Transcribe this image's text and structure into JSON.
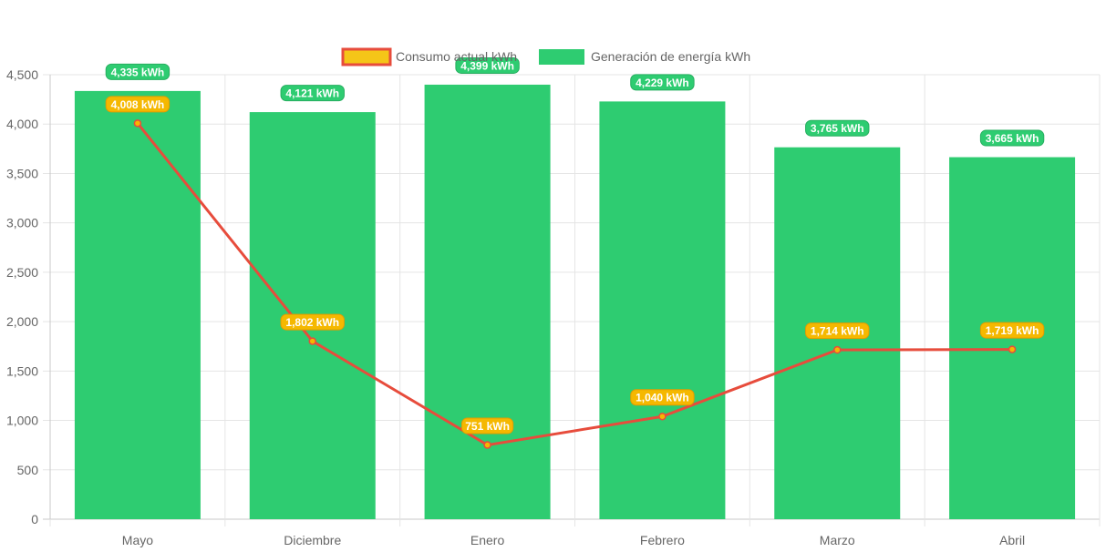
{
  "chart_data": {
    "type": "bar",
    "categories": [
      "Mayo",
      "Diciembre",
      "Enero",
      "Febrero",
      "Marzo",
      "Abril"
    ],
    "ylim": [
      0,
      4500
    ],
    "yticks": [
      0,
      500,
      1000,
      1500,
      2000,
      2500,
      3000,
      3500,
      4000,
      4500
    ],
    "ytick_labels": [
      "0",
      "500",
      "1,000",
      "1,500",
      "2,000",
      "2,500",
      "3,000",
      "3,500",
      "4,000",
      "4,500"
    ],
    "grid": true,
    "legend_position": "top-center",
    "series": [
      {
        "name": "Consumo actual kWh",
        "type": "line",
        "values": [
          4008,
          1802,
          751,
          1040,
          1714,
          1719
        ],
        "labels": [
          "4,008 kWh",
          "1,802 kWh",
          "751 kWh",
          "1,040 kWh",
          "1,714 kWh",
          "1,719 kWh"
        ],
        "color": "#e74c3c",
        "label_color": "#f5b800"
      },
      {
        "name": "Generación de energía kWh",
        "type": "bar",
        "values": [
          4335,
          4121,
          4399,
          4229,
          3765,
          3665
        ],
        "labels": [
          "4,335 kWh",
          "4,121 kWh",
          "4,399 kWh",
          "4,229 kWh",
          "3,765 kWh",
          "3,665 kWh"
        ],
        "color": "#2ecc71",
        "label_color": "#2ecc71"
      }
    ]
  }
}
